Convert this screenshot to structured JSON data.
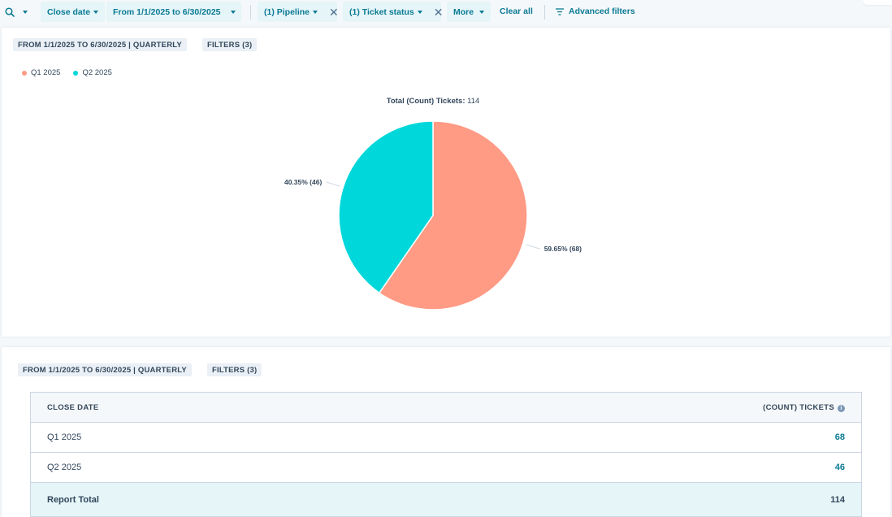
{
  "filters": {
    "close_date": "Close date",
    "date_range": "From 1/1/2025 to 6/30/2025",
    "pipeline": "(1) Pipeline",
    "ticket_status": "(1) Ticket status",
    "more": "More",
    "clear_all": "Clear all",
    "advanced": "Advanced filters"
  },
  "report": {
    "range_tag": "FROM 1/1/2025 TO 6/30/2025 | QUARTERLY",
    "filters_tag": "FILTERS (3)",
    "title_label": "Total (Count) Tickets:",
    "title_value": "114"
  },
  "chart_data": {
    "type": "pie",
    "total": 114,
    "slices": [
      {
        "name": "Q1 2025",
        "value": 68,
        "label": "59.65% (68)",
        "color": "#ff9a84"
      },
      {
        "name": "Q2 2025",
        "value": 46,
        "label": "40.35% (46)",
        "color": "#00d7db"
      }
    ]
  },
  "table": {
    "col_date": "CLOSE DATE",
    "col_count": "(COUNT) TICKETS",
    "rows": [
      {
        "date": "Q1 2025",
        "count": "68"
      },
      {
        "date": "Q2 2025",
        "count": "46"
      }
    ],
    "total_label": "Report Total",
    "total_value": "114"
  }
}
